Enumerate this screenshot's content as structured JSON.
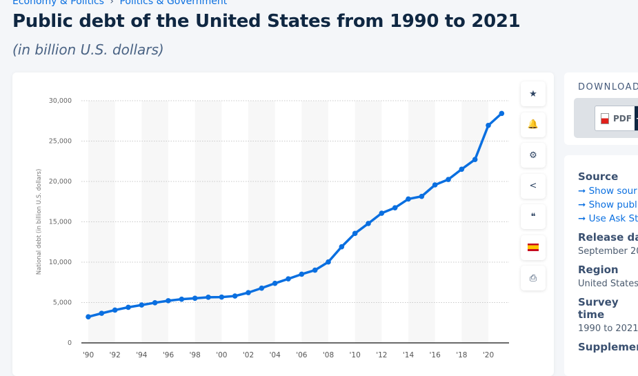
{
  "breadcrumb": [
    "Economy & Politics",
    "Politics & Government"
  ],
  "breadcrumb_sep": "›",
  "title": "Public debt of the United States from 1990 to 2021",
  "subtitle": "(in billion U.S. dollars)",
  "tools": [
    {
      "icon": "star-icon",
      "glyph": "★"
    },
    {
      "icon": "bell-icon",
      "glyph": "🔔"
    },
    {
      "icon": "gear-icon",
      "glyph": "⚙"
    },
    {
      "icon": "share-icon",
      "glyph": "<"
    },
    {
      "icon": "quote-icon",
      "glyph": "❝"
    },
    {
      "icon": "spanish-flag-icon",
      "glyph": ""
    },
    {
      "icon": "print-icon",
      "glyph": "⎙"
    }
  ],
  "download": {
    "heading": "DOWNLOAD",
    "pdf_label": "PDF",
    "plus": "+"
  },
  "info": {
    "source_label": "Source",
    "links": [
      "Show sour",
      "Show publ",
      "Use Ask St"
    ],
    "link_arrow": "➞",
    "release_label": "Release dat",
    "release_value": "September 20",
    "region_label": "Region",
    "region_value": "United States",
    "survey_label": "Survey time",
    "survey_value": "1990 to 2021",
    "supp_label": "Supplement"
  },
  "colors": {
    "line": "#0a6fe0",
    "band": "#f7f7f7",
    "grid": "#c8c8c8"
  },
  "chart_data": {
    "type": "line",
    "title": "",
    "xlabel": "",
    "ylabel": "National debt (in billion U.S. dollars)",
    "ylim": [
      0,
      30000
    ],
    "yticks": [
      0,
      5000,
      10000,
      15000,
      20000,
      25000,
      30000
    ],
    "ytick_labels": [
      "0",
      "5,000",
      "10,000",
      "15,000",
      "20,000",
      "25,000",
      "30,000"
    ],
    "xtick_labels": [
      "'90",
      "'92",
      "'94",
      "'96",
      "'98",
      "'00",
      "'02",
      "'04",
      "'06",
      "'08",
      "'10",
      "'12",
      "'14",
      "'16",
      "'18",
      "'20"
    ],
    "grid": true,
    "x": [
      1990,
      1991,
      1992,
      1993,
      1994,
      1995,
      1996,
      1997,
      1998,
      1999,
      2000,
      2001,
      2002,
      2003,
      2004,
      2005,
      2006,
      2007,
      2008,
      2009,
      2010,
      2011,
      2012,
      2013,
      2014,
      2015,
      2016,
      2017,
      2018,
      2019,
      2020,
      2021
    ],
    "values": [
      3233,
      3665,
      4065,
      4411,
      4693,
      4974,
      5225,
      5413,
      5526,
      5656,
      5674,
      5807,
      6228,
      6783,
      7379,
      7933,
      8507,
      9008,
      10025,
      11910,
      13562,
      14790,
      16066,
      16738,
      17824,
      18151,
      19573,
      20245,
      21516,
      22719,
      26945,
      28429
    ]
  }
}
